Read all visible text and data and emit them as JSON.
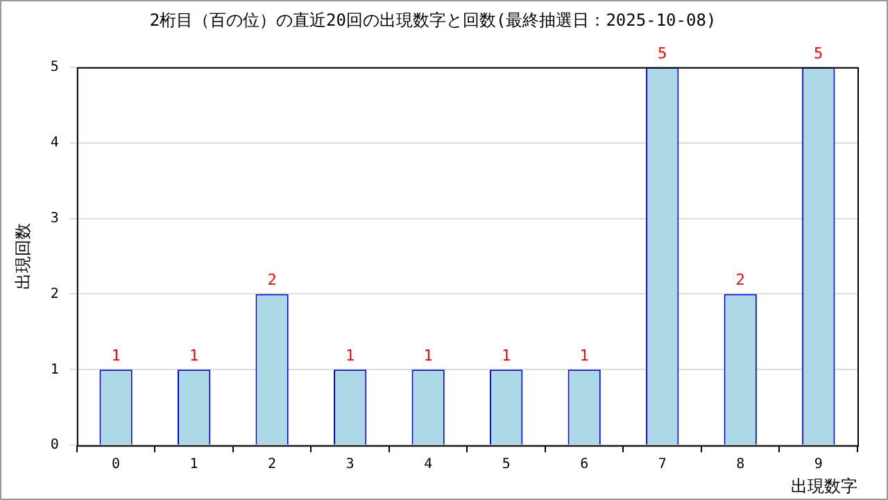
{
  "chart_data": {
    "type": "bar",
    "title": "2桁目（百の位）の直近20回の出現数字と回数(最終抽選日：2025-10-08)",
    "xlabel": "出現数字",
    "ylabel": "出現回数",
    "categories": [
      "0",
      "1",
      "2",
      "3",
      "4",
      "5",
      "6",
      "7",
      "8",
      "9"
    ],
    "values": [
      1,
      1,
      2,
      1,
      1,
      1,
      1,
      5,
      2,
      5
    ],
    "color": "#add8e6",
    "ylim": [
      0,
      5
    ],
    "yticks": [
      0,
      1,
      2,
      3,
      4,
      5
    ],
    "grid": "y",
    "data_labels": true,
    "legend": false
  }
}
